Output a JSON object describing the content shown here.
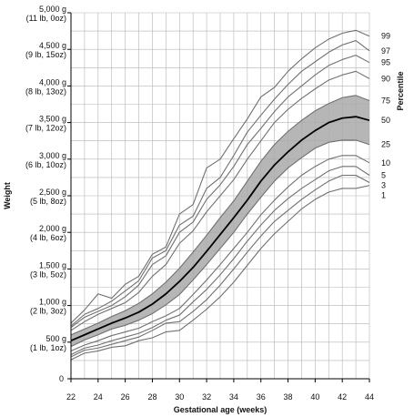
{
  "chart_data": {
    "type": "line",
    "xlabel": "Gestational age (weeks)",
    "ylabel": "Weight",
    "right_label": "Percentile",
    "xlim": [
      22,
      44
    ],
    "ylim": [
      0,
      5000
    ],
    "grid": true,
    "x_ticks": [
      22,
      24,
      26,
      28,
      30,
      32,
      34,
      36,
      38,
      40,
      42,
      44
    ],
    "y_ticks": [
      {
        "value": 0,
        "line1": "0",
        "line2": ""
      },
      {
        "value": 500,
        "line1": "500 g",
        "line2": "(1 lb, 1oz)"
      },
      {
        "value": 1000,
        "line1": "1,000 g",
        "line2": "(2 lb, 3oz)"
      },
      {
        "value": 1500,
        "line1": "1,500 g",
        "line2": "(3 lb, 5oz)"
      },
      {
        "value": 2000,
        "line1": "2,000 g",
        "line2": "(4 lb, 6oz)"
      },
      {
        "value": 2500,
        "line1": "2,500 g",
        "line2": "(5 lb, 8oz)"
      },
      {
        "value": 3000,
        "line1": "3,000 g",
        "line2": "(6 lb, 10oz)"
      },
      {
        "value": 3500,
        "line1": "3,500 g",
        "line2": "(7 lb, 12oz)"
      },
      {
        "value": 4000,
        "line1": "4,000 g",
        "line2": "(8 lb, 13oz)"
      },
      {
        "value": 4500,
        "line1": "4,500 g",
        "line2": "(9 lb, 15oz)"
      },
      {
        "value": 5000,
        "line1": "5,000 g",
        "line2": "(11 lb, 0oz)"
      }
    ],
    "x": [
      22,
      23,
      24,
      25,
      26,
      27,
      28,
      29,
      30,
      31,
      32,
      33,
      34,
      35,
      36,
      37,
      38,
      39,
      40,
      41,
      42,
      43,
      44
    ],
    "series": [
      {
        "name": "1",
        "values": [
          260,
          350,
          380,
          430,
          450,
          520,
          560,
          640,
          660,
          800,
          950,
          1120,
          1320,
          1550,
          1780,
          1980,
          2150,
          2320,
          2450,
          2550,
          2600,
          2600,
          2640
        ]
      },
      {
        "name": "3",
        "values": [
          300,
          390,
          420,
          470,
          520,
          570,
          660,
          760,
          780,
          920,
          1080,
          1280,
          1500,
          1730,
          1950,
          2150,
          2300,
          2450,
          2580,
          2700,
          2780,
          2780,
          2680
        ]
      },
      {
        "name": "5",
        "values": [
          330,
          420,
          460,
          520,
          570,
          620,
          700,
          800,
          870,
          1050,
          1220,
          1420,
          1640,
          1880,
          2100,
          2300,
          2460,
          2600,
          2720,
          2840,
          2900,
          2900,
          2780
        ]
      },
      {
        "name": "10",
        "values": [
          380,
          460,
          520,
          590,
          640,
          690,
          780,
          860,
          960,
          1150,
          1350,
          1560,
          1780,
          2000,
          2240,
          2440,
          2620,
          2780,
          2900,
          3000,
          3050,
          3050,
          2950
        ]
      },
      {
        "name": "25",
        "values": [
          440,
          530,
          600,
          680,
          730,
          800,
          890,
          1010,
          1150,
          1350,
          1560,
          1780,
          2000,
          2250,
          2480,
          2700,
          2880,
          3020,
          3150,
          3230,
          3260,
          3260,
          3200
        ]
      },
      {
        "name": "50",
        "values": [
          520,
          600,
          680,
          760,
          830,
          910,
          1020,
          1160,
          1330,
          1520,
          1740,
          1970,
          2200,
          2440,
          2700,
          2920,
          3100,
          3260,
          3390,
          3500,
          3560,
          3580,
          3530
        ]
      },
      {
        "name": "75",
        "values": [
          600,
          680,
          760,
          850,
          930,
          1030,
          1160,
          1320,
          1510,
          1730,
          1960,
          2200,
          2430,
          2700,
          2970,
          3200,
          3380,
          3530,
          3660,
          3760,
          3840,
          3870,
          3800
        ]
      },
      {
        "name": "90",
        "values": [
          660,
          780,
          880,
          960,
          1040,
          1180,
          1400,
          1560,
          1850,
          2020,
          2280,
          2500,
          2720,
          3000,
          3250,
          3500,
          3680,
          3830,
          3960,
          4080,
          4150,
          4200,
          4100
        ]
      },
      {
        "name": "95",
        "values": [
          700,
          840,
          920,
          1000,
          1120,
          1280,
          1560,
          1680,
          2000,
          2140,
          2450,
          2650,
          2900,
          3200,
          3420,
          3650,
          3850,
          4000,
          4150,
          4280,
          4360,
          4420,
          4320
        ]
      },
      {
        "name": "97",
        "values": [
          720,
          880,
          960,
          1060,
          1200,
          1340,
          1650,
          1750,
          2100,
          2220,
          2600,
          2750,
          3050,
          3370,
          3600,
          3820,
          4020,
          4200,
          4330,
          4460,
          4560,
          4620,
          4480
        ]
      },
      {
        "name": "99",
        "values": [
          760,
          940,
          1160,
          1100,
          1290,
          1400,
          1700,
          1800,
          2250,
          2380,
          2880,
          3000,
          3280,
          3550,
          3850,
          3980,
          4200,
          4370,
          4520,
          4640,
          4720,
          4760,
          4680
        ]
      }
    ],
    "band": {
      "lower": "25",
      "upper": "75",
      "color": "#a9a9a9"
    },
    "median_series": "50",
    "colors": {
      "line": "#707070",
      "median": "#000000",
      "grid": "#b5b5b5",
      "axis": "#000000"
    }
  }
}
